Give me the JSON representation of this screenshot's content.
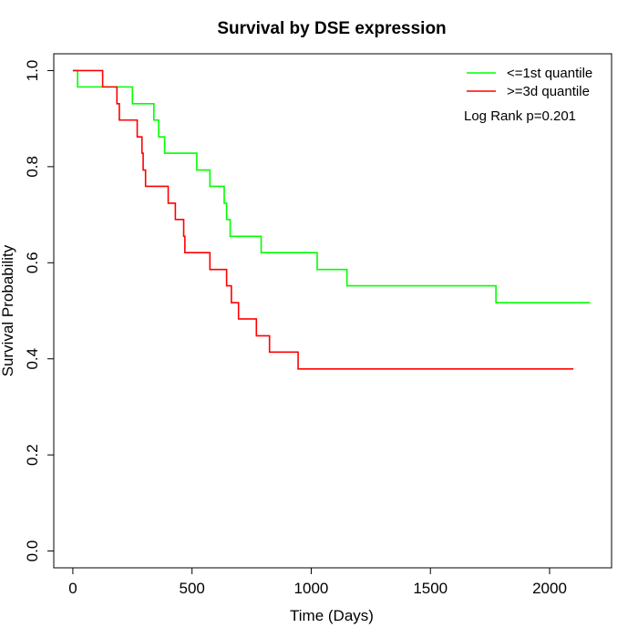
{
  "chart_data": {
    "type": "line",
    "title": "Survival by DSE expression",
    "xlabel": "Time (Days)",
    "ylabel": "Survival Probability",
    "xlim": [
      -80,
      2260
    ],
    "ylim": [
      -0.035,
      1.035
    ],
    "x_ticks": [
      0,
      500,
      1000,
      1500,
      2000
    ],
    "x_tick_labels": [
      "0",
      "500",
      "1000",
      "1500",
      "2000"
    ],
    "y_ticks": [
      0.0,
      0.2,
      0.4,
      0.6,
      0.8,
      1.0
    ],
    "y_tick_labels": [
      "0.0",
      "0.2",
      "0.4",
      "0.6",
      "0.8",
      "1.0"
    ],
    "legend_position": "top-right",
    "annotation": "Log Rank p=0.201",
    "series": [
      {
        "name": "<=1st quantile",
        "color": "#00FF00",
        "step": true,
        "x": [
          0,
          20,
          250,
          340,
          360,
          385,
          520,
          575,
          635,
          645,
          660,
          790,
          1025,
          1150,
          1775,
          2170
        ],
        "y": [
          1.0,
          0.966,
          0.931,
          0.897,
          0.862,
          0.828,
          0.793,
          0.759,
          0.724,
          0.69,
          0.655,
          0.621,
          0.586,
          0.552,
          0.517,
          0.517
        ]
      },
      {
        "name": ">=3d quantile",
        "color": "#FF0000",
        "step": true,
        "x": [
          0,
          125,
          185,
          195,
          270,
          290,
          295,
          305,
          320,
          400,
          430,
          465,
          470,
          575,
          645,
          665,
          695,
          770,
          825,
          945,
          2100
        ],
        "y": [
          1.0,
          0.966,
          0.931,
          0.897,
          0.862,
          0.828,
          0.793,
          0.759,
          0.759,
          0.724,
          0.69,
          0.655,
          0.621,
          0.586,
          0.552,
          0.517,
          0.483,
          0.448,
          0.414,
          0.379,
          0.379
        ]
      }
    ]
  }
}
